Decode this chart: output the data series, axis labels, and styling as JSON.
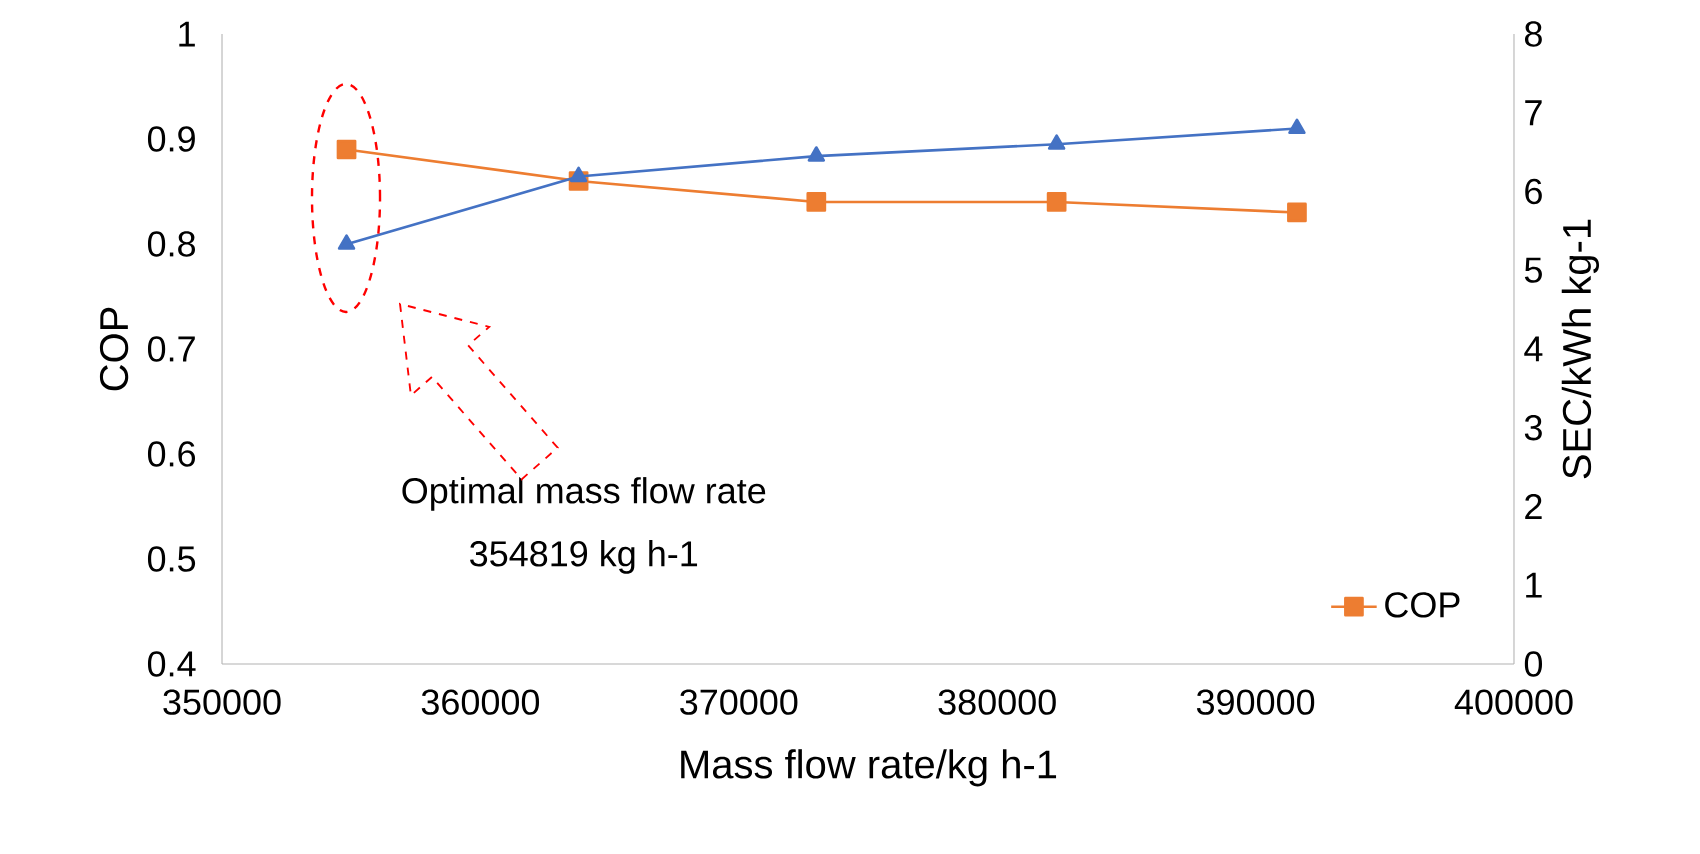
{
  "chart_data": {
    "type": "line",
    "xlabel": "Mass flow rate/kg h-1",
    "ylabel": "COP",
    "y2label": "SEC/kWh kg-1",
    "x": [
      354819,
      363800,
      373000,
      382300,
      391600
    ],
    "series": [
      {
        "name": "COP",
        "color": "#ed7d31",
        "marker": "square",
        "values": [
          0.89,
          0.86,
          0.84,
          0.84,
          0.83
        ]
      },
      {
        "color": "#4472c4",
        "marker": "triangle",
        "axis": "y2",
        "values": [
          5.33,
          6.19,
          6.45,
          6.6,
          6.8
        ]
      }
    ],
    "xlim": [
      350000,
      400000
    ],
    "xticks": [
      350000,
      360000,
      370000,
      380000,
      390000,
      400000
    ],
    "ylim": [
      0.4,
      1
    ],
    "yticks": [
      0.4,
      0.5,
      0.6,
      0.7,
      0.8,
      0.9,
      1
    ],
    "y2lim": [
      0,
      8
    ],
    "y2ticks": [
      0,
      1,
      2,
      3,
      4,
      5,
      6,
      7,
      8
    ],
    "legend": "bottom right",
    "grid": false,
    "annotations": [
      "Optimal mass flow rate",
      "354819 kg h-1"
    ]
  }
}
